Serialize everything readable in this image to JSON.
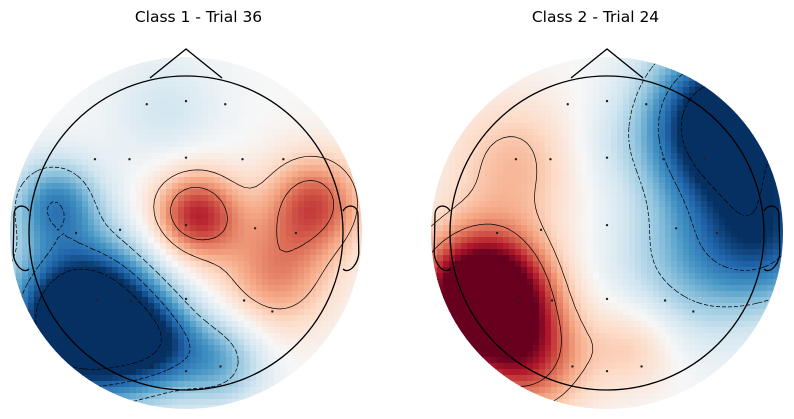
{
  "chart_data": [
    {
      "type": "heatmap",
      "title": "Class 1 - Trial 36",
      "colormap": "RdBu_r",
      "colors": {
        "high": "#67001f",
        "low": "#053061",
        "mid": "#f7f7f7"
      },
      "sources": [
        {
          "x": 0.05,
          "y": 0.13,
          "w": 0.85,
          "s": 0.2
        },
        {
          "x": 0.8,
          "y": 0.2,
          "w": 0.7,
          "s": 0.22
        },
        {
          "x": 0.55,
          "y": -0.25,
          "w": 0.5,
          "s": 0.25
        },
        {
          "x": -0.65,
          "y": -0.55,
          "w": -1.9,
          "s": 0.32
        },
        {
          "x": -0.2,
          "y": -0.7,
          "w": -0.6,
          "s": 0.2
        },
        {
          "x": 0.2,
          "y": -0.8,
          "w": -0.5,
          "s": 0.2
        },
        {
          "x": -0.85,
          "y": 0.2,
          "w": -0.7,
          "s": 0.2
        },
        {
          "x": -0.15,
          "y": 0.8,
          "w": -0.2,
          "s": 0.25
        }
      ],
      "sensors": [
        [
          -0.25,
          0.82
        ],
        [
          0.0,
          0.84
        ],
        [
          0.25,
          0.82
        ],
        [
          -0.58,
          0.47
        ],
        [
          -0.36,
          0.47
        ],
        [
          0.0,
          0.48
        ],
        [
          0.36,
          0.47
        ],
        [
          0.62,
          0.47
        ],
        [
          -0.7,
          0.0
        ],
        [
          -0.42,
          0.02
        ],
        [
          0.0,
          0.05
        ],
        [
          0.44,
          0.03
        ],
        [
          0.7,
          0.0
        ],
        [
          -0.57,
          -0.43
        ],
        [
          -0.35,
          -0.43
        ],
        [
          0.0,
          -0.42
        ],
        [
          0.37,
          -0.43
        ],
        [
          0.55,
          -0.5
        ],
        [
          -0.22,
          -0.85
        ],
        [
          0.0,
          -0.88
        ],
        [
          0.22,
          -0.85
        ]
      ]
    },
    {
      "type": "heatmap",
      "title": "Class 2 - Trial 24",
      "colormap": "RdBu_r",
      "colors": {
        "high": "#67001f",
        "low": "#053061",
        "mid": "#f7f7f7"
      },
      "sources": [
        {
          "x": 0.75,
          "y": 0.7,
          "w": -1.6,
          "s": 0.35
        },
        {
          "x": 1.0,
          "y": 0.0,
          "w": -0.8,
          "s": 0.3
        },
        {
          "x": 0.5,
          "y": -0.2,
          "w": -0.4,
          "s": 0.35
        },
        {
          "x": -0.8,
          "y": -0.4,
          "w": 1.8,
          "s": 0.28
        },
        {
          "x": -0.5,
          "y": -0.8,
          "w": 0.6,
          "s": 0.25
        },
        {
          "x": -0.6,
          "y": 0.45,
          "w": 0.35,
          "s": 0.3
        },
        {
          "x": 0.15,
          "y": -0.7,
          "w": 0.3,
          "s": 0.2
        },
        {
          "x": -0.05,
          "y": 0.55,
          "w": -0.1,
          "s": 0.2
        }
      ],
      "sensors": [
        [
          -0.25,
          0.82
        ],
        [
          0.0,
          0.84
        ],
        [
          0.25,
          0.82
        ],
        [
          -0.58,
          0.47
        ],
        [
          -0.36,
          0.47
        ],
        [
          0.0,
          0.48
        ],
        [
          0.36,
          0.47
        ],
        [
          0.62,
          0.47
        ],
        [
          -0.7,
          0.0
        ],
        [
          -0.42,
          0.02
        ],
        [
          0.0,
          0.05
        ],
        [
          0.44,
          0.03
        ],
        [
          0.7,
          0.0
        ],
        [
          -0.57,
          -0.43
        ],
        [
          -0.35,
          -0.43
        ],
        [
          0.0,
          -0.42
        ],
        [
          0.37,
          -0.43
        ],
        [
          0.55,
          -0.5
        ],
        [
          -0.22,
          -0.85
        ],
        [
          0.0,
          -0.88
        ],
        [
          0.22,
          -0.85
        ]
      ]
    }
  ]
}
